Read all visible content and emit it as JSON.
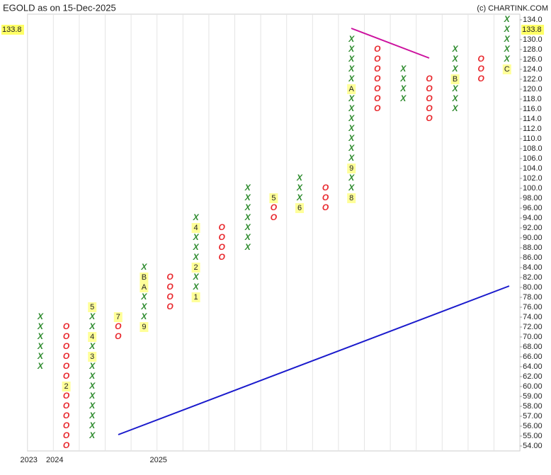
{
  "chart_data": {
    "type": "point-and-figure",
    "title": "EGOLD as on 15-Dec-2025",
    "credit": "(c) CHARTINK.COM",
    "x_color": "#2e8b2e",
    "o_color": "#e8282d",
    "marker_color": "#ffff99",
    "yticks": [
      {
        "value": 54,
        "label": "54.00"
      },
      {
        "value": 55,
        "label": "55.00"
      },
      {
        "value": 56,
        "label": "56.00"
      },
      {
        "value": 57,
        "label": "57.00"
      },
      {
        "value": 58,
        "label": "58.00"
      },
      {
        "value": 59,
        "label": "59.00"
      },
      {
        "value": 60,
        "label": "60.00"
      },
      {
        "value": 62,
        "label": "62.00"
      },
      {
        "value": 64,
        "label": "64.00"
      },
      {
        "value": 66,
        "label": "66.00"
      },
      {
        "value": 68,
        "label": "68.00"
      },
      {
        "value": 70,
        "label": "70.00"
      },
      {
        "value": 72,
        "label": "72.00"
      },
      {
        "value": 74,
        "label": "74.00"
      },
      {
        "value": 76,
        "label": "76.00"
      },
      {
        "value": 78,
        "label": "78.00"
      },
      {
        "value": 80,
        "label": "80.00"
      },
      {
        "value": 82,
        "label": "82.00"
      },
      {
        "value": 84,
        "label": "84.00"
      },
      {
        "value": 86,
        "label": "86.00"
      },
      {
        "value": 88,
        "label": "88.00"
      },
      {
        "value": 90,
        "label": "90.00"
      },
      {
        "value": 92,
        "label": "92.00"
      },
      {
        "value": 94,
        "label": "94.00"
      },
      {
        "value": 96,
        "label": "96.00"
      },
      {
        "value": 98,
        "label": "98.00"
      },
      {
        "value": 100,
        "label": "100.0"
      },
      {
        "value": 102,
        "label": "102.0"
      },
      {
        "value": 104,
        "label": "104.0"
      },
      {
        "value": 106,
        "label": "106.0"
      },
      {
        "value": 108,
        "label": "108.0"
      },
      {
        "value": 110,
        "label": "110.0"
      },
      {
        "value": 112,
        "label": "112.0"
      },
      {
        "value": 114,
        "label": "114.0"
      },
      {
        "value": 116,
        "label": "116.0"
      },
      {
        "value": 118,
        "label": "118.0"
      },
      {
        "value": 120,
        "label": "120.0"
      },
      {
        "value": 122,
        "label": "122.0"
      },
      {
        "value": 124,
        "label": "124.0"
      },
      {
        "value": 126,
        "label": "126.0"
      },
      {
        "value": 128,
        "label": "128.0"
      },
      {
        "value": 130,
        "label": "130.0"
      },
      {
        "value": 134,
        "label": "134.0"
      }
    ],
    "last_price": 133.8,
    "categories": [
      "2023",
      "2024",
      null,
      null,
      null,
      "2025",
      null,
      null,
      null,
      null,
      null,
      null,
      null,
      null,
      null,
      null,
      null,
      null,
      null
    ],
    "columns": [
      {
        "symbol": "X",
        "boxes": [
          64,
          66,
          68,
          70,
          72,
          74
        ],
        "markers": []
      },
      {
        "symbol": "O",
        "boxes": [
          54,
          55,
          56,
          57,
          58,
          59,
          60,
          62,
          64,
          66,
          68,
          70,
          72
        ],
        "markers": [
          {
            "price": 60,
            "label": "2"
          }
        ]
      },
      {
        "symbol": "X",
        "boxes": [
          55,
          56,
          57,
          58,
          59,
          60,
          62,
          64,
          66,
          68,
          70,
          72,
          74,
          76
        ],
        "markers": [
          {
            "price": 66,
            "label": "3"
          },
          {
            "price": 70,
            "label": "4"
          },
          {
            "price": 76,
            "label": "5"
          }
        ]
      },
      {
        "symbol": "O",
        "boxes": [
          70,
          72,
          74
        ],
        "markers": [
          {
            "price": 74,
            "label": "7"
          }
        ]
      },
      {
        "symbol": "X",
        "boxes": [
          72,
          74,
          76,
          78,
          80,
          82,
          84
        ],
        "markers": [
          {
            "price": 72,
            "label": "9"
          },
          {
            "price": 80,
            "label": "A"
          },
          {
            "price": 82,
            "label": "B"
          }
        ]
      },
      {
        "symbol": "O",
        "boxes": [
          76,
          78,
          80,
          82
        ],
        "markers": []
      },
      {
        "symbol": "X",
        "boxes": [
          78,
          80,
          82,
          84,
          86,
          88,
          90,
          92,
          94
        ],
        "markers": [
          {
            "price": 78,
            "label": "1"
          },
          {
            "price": 84,
            "label": "2"
          },
          {
            "price": 92,
            "label": "4"
          }
        ]
      },
      {
        "symbol": "O",
        "boxes": [
          86,
          88,
          90,
          92
        ],
        "markers": []
      },
      {
        "symbol": "X",
        "boxes": [
          88,
          90,
          92,
          94,
          96,
          98,
          100
        ],
        "markers": []
      },
      {
        "symbol": "O",
        "boxes": [
          94,
          96,
          98
        ],
        "markers": [
          {
            "price": 98,
            "label": "5"
          }
        ]
      },
      {
        "symbol": "X",
        "boxes": [
          96,
          98,
          100,
          102
        ],
        "markers": [
          {
            "price": 96,
            "label": "6"
          }
        ]
      },
      {
        "symbol": "O",
        "boxes": [
          96,
          98,
          100
        ],
        "markers": []
      },
      {
        "symbol": "X",
        "boxes": [
          98,
          100,
          102,
          104,
          106,
          108,
          110,
          112,
          114,
          116,
          118,
          120,
          122,
          124,
          126,
          128,
          130
        ],
        "markers": [
          {
            "price": 98,
            "label": "8"
          },
          {
            "price": 104,
            "label": "9"
          },
          {
            "price": 120,
            "label": "A"
          }
        ]
      },
      {
        "symbol": "O",
        "boxes": [
          116,
          118,
          120,
          122,
          124,
          126,
          128
        ],
        "markers": []
      },
      {
        "symbol": "X",
        "boxes": [
          118,
          120,
          122,
          124
        ],
        "markers": []
      },
      {
        "symbol": "O",
        "boxes": [
          114,
          116,
          118,
          120,
          122
        ],
        "markers": []
      },
      {
        "symbol": "X",
        "boxes": [
          116,
          118,
          120,
          122,
          124,
          126,
          128
        ],
        "markers": [
          {
            "price": 122,
            "label": "B"
          }
        ]
      },
      {
        "symbol": "O",
        "boxes": [
          122,
          124,
          126
        ],
        "markers": []
      },
      {
        "symbol": "X",
        "boxes": [
          124,
          126,
          128,
          130,
          132,
          134
        ],
        "markers": [
          {
            "price": 124,
            "label": "C"
          }
        ]
      }
    ]
  }
}
